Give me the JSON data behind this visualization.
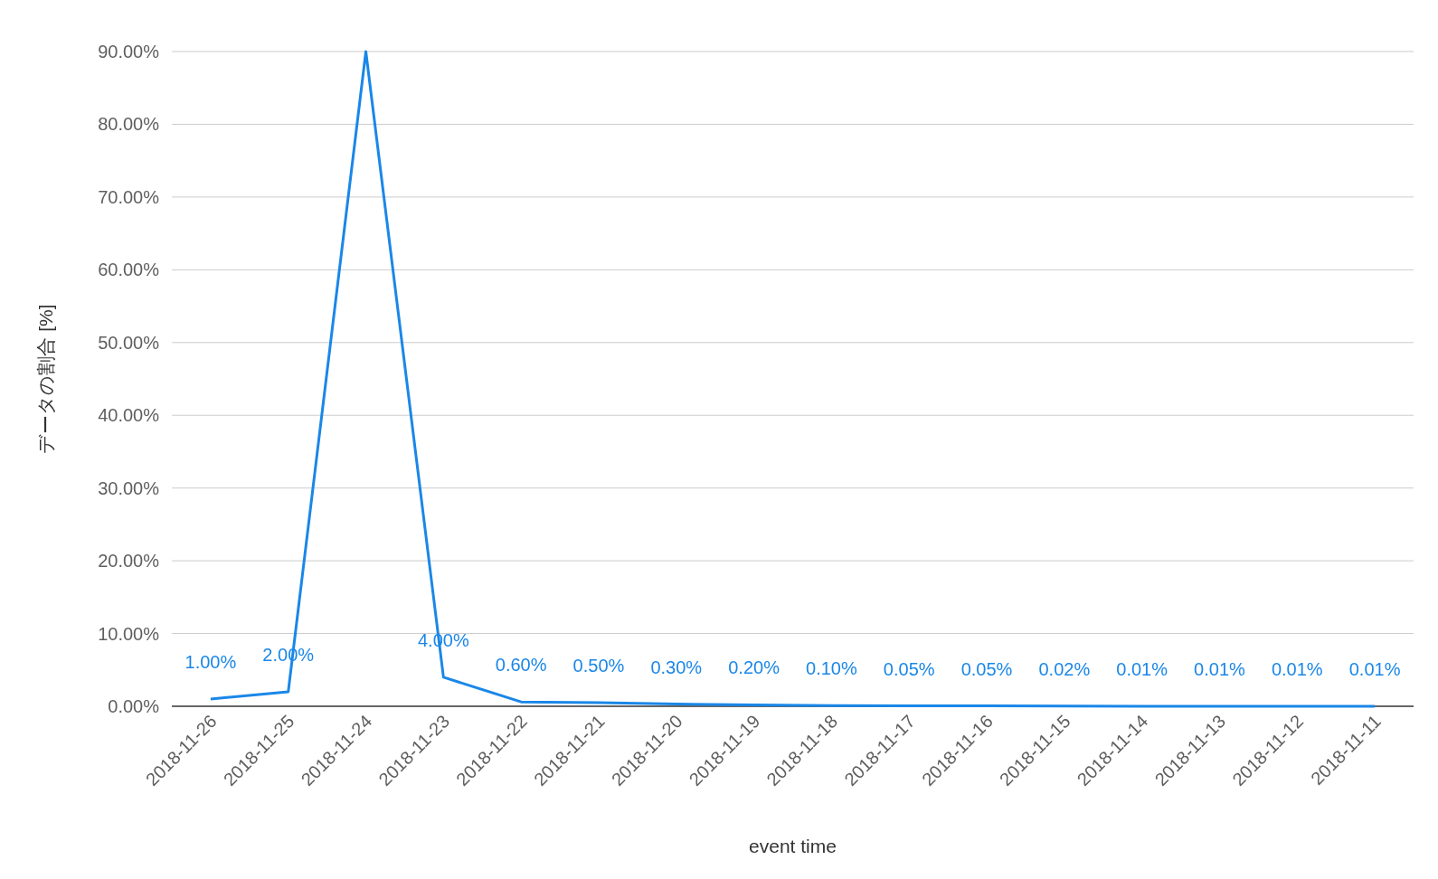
{
  "chart_data": {
    "type": "line",
    "xlabel": "event time",
    "ylabel": "データの割合 [%]",
    "categories": [
      "2018-11-26",
      "2018-11-25",
      "2018-11-24",
      "2018-11-23",
      "2018-11-22",
      "2018-11-21",
      "2018-11-20",
      "2018-11-19",
      "2018-11-18",
      "2018-11-17",
      "2018-11-16",
      "2018-11-15",
      "2018-11-14",
      "2018-11-13",
      "2018-11-12",
      "2018-11-11"
    ],
    "series": [
      {
        "color": "#1a87e8",
        "values": [
          1,
          2,
          90,
          4,
          0.6,
          0.5,
          0.3,
          0.2,
          0.1,
          0.05,
          0.05,
          0.02,
          0.01,
          0.01,
          0.01,
          0.01
        ],
        "value_labels": [
          "1.00%",
          "2.00%",
          null,
          "4.00%",
          "0.60%",
          "0.50%",
          "0.30%",
          "0.20%",
          "0.10%",
          "0.05%",
          "0.05%",
          "0.02%",
          "0.01%",
          "0.01%",
          "0.01%",
          "0.01%"
        ]
      }
    ],
    "ylim": [
      0,
      90
    ],
    "yticks": [
      {
        "value": 0,
        "label": "0.00%"
      },
      {
        "value": 10,
        "label": "10.00%"
      },
      {
        "value": 20,
        "label": "20.00%"
      },
      {
        "value": 30,
        "label": "30.00%"
      },
      {
        "value": 40,
        "label": "40.00%"
      },
      {
        "value": 50,
        "label": "50.00%"
      },
      {
        "value": 60,
        "label": "60.00%"
      },
      {
        "value": 70,
        "label": "70.00%"
      },
      {
        "value": 80,
        "label": "80.00%"
      },
      {
        "value": 90,
        "label": "90.00%"
      }
    ],
    "grid": "y"
  }
}
